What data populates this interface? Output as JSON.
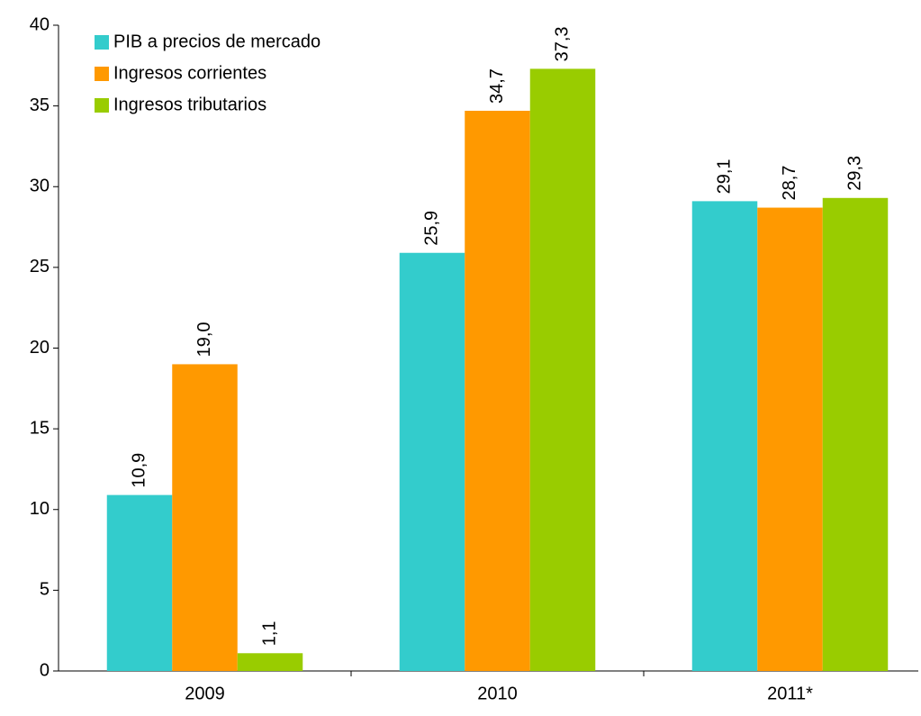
{
  "chart_data": {
    "type": "bar",
    "categories": [
      "2009",
      "2010",
      "2011*"
    ],
    "series": [
      {
        "name": "PIB a precios de mercado",
        "color": "#33cccc",
        "values": [
          10.9,
          25.9,
          29.1
        ],
        "value_labels": [
          "10,9",
          "25,9",
          "29,1"
        ]
      },
      {
        "name": "Ingresos corrientes",
        "color": "#ff9900",
        "values": [
          19.0,
          34.7,
          28.7
        ],
        "value_labels": [
          "19,0",
          "34,7",
          "28,7"
        ]
      },
      {
        "name": "Ingresos tributarios",
        "color": "#99cc00",
        "values": [
          1.1,
          37.3,
          29.3
        ],
        "value_labels": [
          "1,1",
          "37,3",
          "29,3"
        ]
      }
    ],
    "ylim": [
      0,
      40
    ],
    "yticks": [
      0,
      5,
      10,
      15,
      20,
      25,
      30,
      35,
      40
    ],
    "legend": "upper-left"
  }
}
